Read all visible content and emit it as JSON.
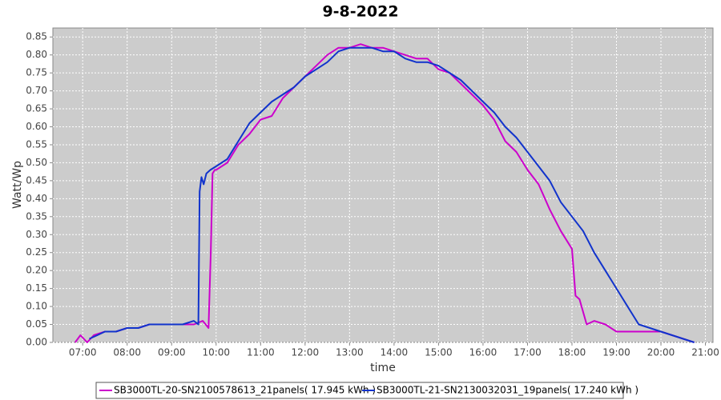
{
  "chart_data": {
    "type": "line",
    "title": "9-8-2022",
    "x_label": "time",
    "y_label": "Watt/Wp",
    "xlim": [
      6.33,
      21.17
    ],
    "ylim": [
      0,
      0.875
    ],
    "grid": true,
    "legend": "bottom",
    "xticks": [
      {
        "value": 7,
        "label": "07:00"
      },
      {
        "value": 8,
        "label": "08:00"
      },
      {
        "value": 9,
        "label": "09:00"
      },
      {
        "value": 10,
        "label": "10:00"
      },
      {
        "value": 11,
        "label": "11:00"
      },
      {
        "value": 12,
        "label": "12:00"
      },
      {
        "value": 13,
        "label": "13:00"
      },
      {
        "value": 14,
        "label": "14:00"
      },
      {
        "value": 15,
        "label": "15:00"
      },
      {
        "value": 16,
        "label": "16:00"
      },
      {
        "value": 17,
        "label": "17:00"
      },
      {
        "value": 18,
        "label": "18:00"
      },
      {
        "value": 19,
        "label": "19:00"
      },
      {
        "value": 20,
        "label": "20:00"
      },
      {
        "value": 21,
        "label": "21:00"
      }
    ],
    "yticks": [
      {
        "value": 0,
        "label": "0.00"
      },
      0.05,
      {
        "value": 0.1,
        "label": "0.10"
      },
      0.15,
      {
        "value": 0.2,
        "label": "0.20"
      },
      0.25,
      {
        "value": 0.3,
        "label": "0.30"
      },
      0.35,
      {
        "value": 0.4,
        "label": "0.40"
      },
      0.45,
      {
        "value": 0.5,
        "label": "0.50"
      },
      0.55,
      {
        "value": 0.6,
        "label": "0.60"
      },
      0.65,
      {
        "value": 0.7,
        "label": "0.70"
      },
      0.75,
      {
        "value": 0.8,
        "label": "0.80"
      },
      0.85
    ],
    "series": [
      {
        "name": "SB3000TL-20-SN2100578613_21panels( 17.945 kWh )",
        "color": "#cc00cc",
        "x": [
          6.83,
          6.95,
          7.1,
          7.25,
          7.5,
          7.75,
          8.0,
          8.25,
          8.5,
          8.75,
          9.0,
          9.25,
          9.5,
          9.7,
          9.83,
          9.88,
          9.92,
          9.97,
          10.0,
          10.25,
          10.5,
          10.75,
          11.0,
          11.25,
          11.5,
          11.75,
          12.0,
          12.25,
          12.5,
          12.75,
          13.0,
          13.25,
          13.5,
          13.75,
          14.0,
          14.25,
          14.5,
          14.75,
          15.0,
          15.25,
          15.5,
          15.75,
          16.0,
          16.25,
          16.5,
          16.75,
          17.0,
          17.25,
          17.5,
          17.75,
          18.0,
          18.08,
          18.17,
          18.33,
          18.5,
          18.75,
          19.0,
          19.25,
          19.5,
          19.75,
          20.0,
          20.25,
          20.5,
          20.75
        ],
        "values": [
          0,
          0.02,
          0,
          0.02,
          0.03,
          0.03,
          0.04,
          0.04,
          0.05,
          0.05,
          0.05,
          0.05,
          0.05,
          0.06,
          0.04,
          0.25,
          0.47,
          0.48,
          0.48,
          0.5,
          0.55,
          0.58,
          0.62,
          0.63,
          0.68,
          0.71,
          0.74,
          0.77,
          0.8,
          0.82,
          0.82,
          0.83,
          0.82,
          0.82,
          0.81,
          0.8,
          0.79,
          0.79,
          0.76,
          0.75,
          0.72,
          0.69,
          0.66,
          0.62,
          0.56,
          0.53,
          0.48,
          0.44,
          0.37,
          0.31,
          0.26,
          0.13,
          0.12,
          0.05,
          0.06,
          0.05,
          0.03,
          0.03,
          0.03,
          0.03,
          0.03,
          0.02,
          0.01,
          0
        ]
      },
      {
        "name": "SB3000TL-21-SN2130032031_19panels( 17.240 kWh )",
        "color": "#1133cc",
        "x": [
          7.15,
          7.33,
          7.5,
          7.75,
          8.0,
          8.25,
          8.5,
          8.75,
          9.0,
          9.25,
          9.5,
          9.6,
          9.63,
          9.67,
          9.72,
          9.78,
          9.87,
          10.0,
          10.25,
          10.5,
          10.75,
          11.0,
          11.25,
          11.5,
          11.75,
          12.0,
          12.25,
          12.5,
          12.75,
          13.0,
          13.25,
          13.5,
          13.75,
          14.0,
          14.25,
          14.5,
          14.75,
          15.0,
          15.25,
          15.5,
          15.75,
          16.0,
          16.25,
          16.5,
          16.75,
          17.0,
          17.25,
          17.5,
          17.75,
          18.0,
          18.25,
          18.5,
          18.75,
          19.0,
          19.25,
          19.5,
          19.75,
          20.0,
          20.25,
          20.5,
          20.75
        ],
        "values": [
          0.01,
          0.02,
          0.03,
          0.03,
          0.04,
          0.04,
          0.05,
          0.05,
          0.05,
          0.05,
          0.06,
          0.05,
          0.42,
          0.46,
          0.44,
          0.47,
          0.48,
          0.49,
          0.51,
          0.56,
          0.61,
          0.64,
          0.67,
          0.69,
          0.71,
          0.74,
          0.76,
          0.78,
          0.81,
          0.82,
          0.82,
          0.82,
          0.81,
          0.81,
          0.79,
          0.78,
          0.78,
          0.77,
          0.75,
          0.73,
          0.7,
          0.67,
          0.64,
          0.6,
          0.57,
          0.53,
          0.49,
          0.45,
          0.39,
          0.35,
          0.31,
          0.25,
          0.2,
          0.15,
          0.1,
          0.05,
          0.04,
          0.03,
          0.02,
          0.01,
          0
        ]
      }
    ]
  }
}
